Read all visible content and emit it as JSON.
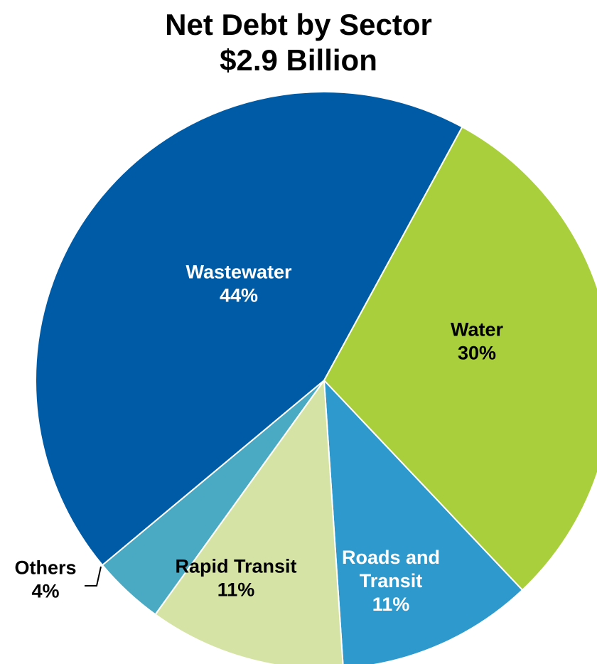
{
  "chart_data": {
    "type": "pie",
    "title": "Net Debt by Sector",
    "subtitle": "$2.9 Billion",
    "slices": [
      {
        "name": "Water",
        "percent_label": "30%",
        "value": 30,
        "color": "#a9cf3c",
        "label_color": "#000000",
        "label_lines": [
          "Water"
        ]
      },
      {
        "name": "Roads and Transit",
        "percent_label": "11%",
        "value": 11,
        "color": "#2e99cd",
        "label_color": "#ffffff",
        "label_lines": [
          "Roads and",
          "Transit"
        ]
      },
      {
        "name": "Rapid Transit",
        "percent_label": "11%",
        "value": 11,
        "color": "#d5e4a4",
        "label_color": "#000000",
        "label_lines": [
          "Rapid Transit"
        ]
      },
      {
        "name": "Others",
        "percent_label": "4%",
        "value": 4,
        "color": "#4aaac3",
        "label_color": "#000000",
        "label_lines": [
          "Others"
        ]
      },
      {
        "name": "Wastewater",
        "percent_label": "44%",
        "value": 44,
        "color": "#005ba6",
        "label_color": "#ffffff",
        "label_lines": [
          "Wastewater"
        ]
      }
    ]
  }
}
